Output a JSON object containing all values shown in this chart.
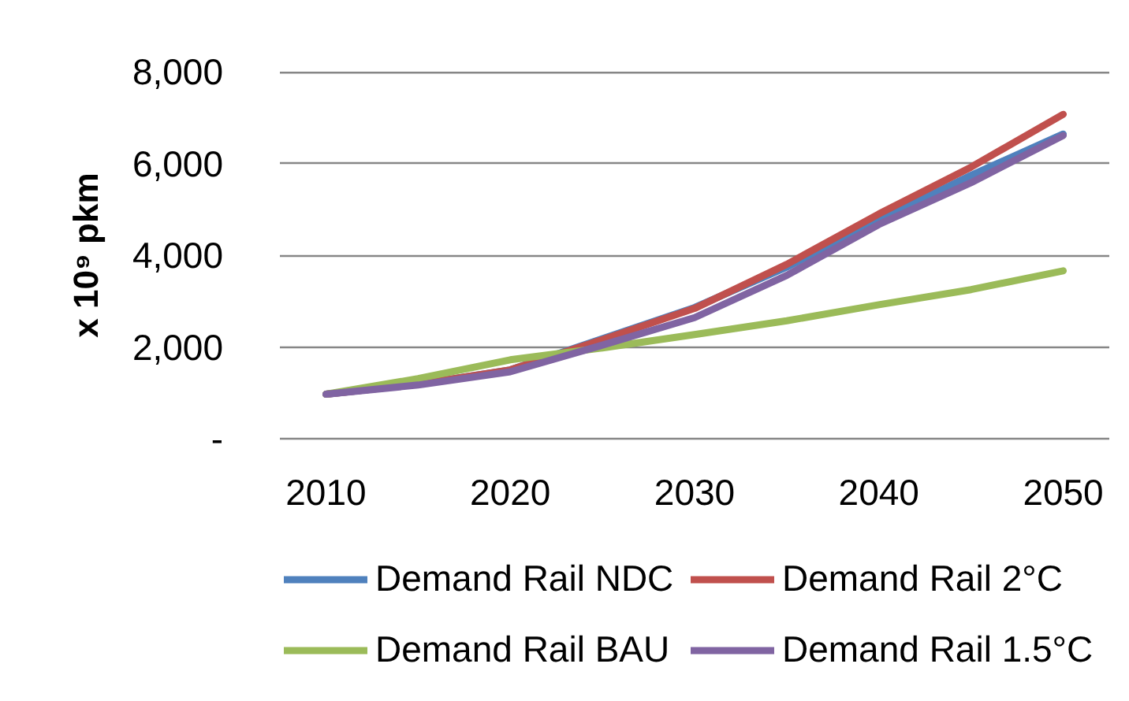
{
  "chart_data": {
    "type": "line",
    "ylabel": "x 10⁹ pkm",
    "x": [
      2010,
      2015,
      2020,
      2025,
      2030,
      2035,
      2040,
      2045,
      2050
    ],
    "xlim": [
      2007.5,
      2052.5
    ],
    "xticks": [
      2010,
      2020,
      2030,
      2040,
      2050
    ],
    "ylim": [
      0,
      8000
    ],
    "yticks": [
      {
        "value": 0,
        "label": "-"
      },
      {
        "value": 2000,
        "label": "2,000"
      },
      {
        "value": 4000,
        "label": "4,000"
      },
      {
        "value": 6000,
        "label": "6,000"
      },
      {
        "value": 8000,
        "label": "8,000"
      }
    ],
    "grid": "y",
    "legend": "bottom",
    "line_style": "solid",
    "series": [
      {
        "name": "Demand Rail NDC",
        "color": "#4f81bd",
        "values": [
          970,
          1190,
          1500,
          2180,
          2860,
          3740,
          4760,
          5740,
          6640
        ]
      },
      {
        "name": "Demand Rail 2°C",
        "color": "#c0504d",
        "values": [
          970,
          1190,
          1500,
          2160,
          2840,
          3800,
          4900,
          5920,
          7070
        ]
      },
      {
        "name": "Demand Rail BAU",
        "color": "#9bbb59",
        "values": [
          970,
          1310,
          1720,
          1980,
          2270,
          2570,
          2920,
          3250,
          3660
        ]
      },
      {
        "name": "Demand Rail 1.5°C",
        "color": "#8064a2",
        "values": [
          970,
          1170,
          1460,
          2040,
          2640,
          3560,
          4670,
          5580,
          6610
        ]
      }
    ]
  }
}
